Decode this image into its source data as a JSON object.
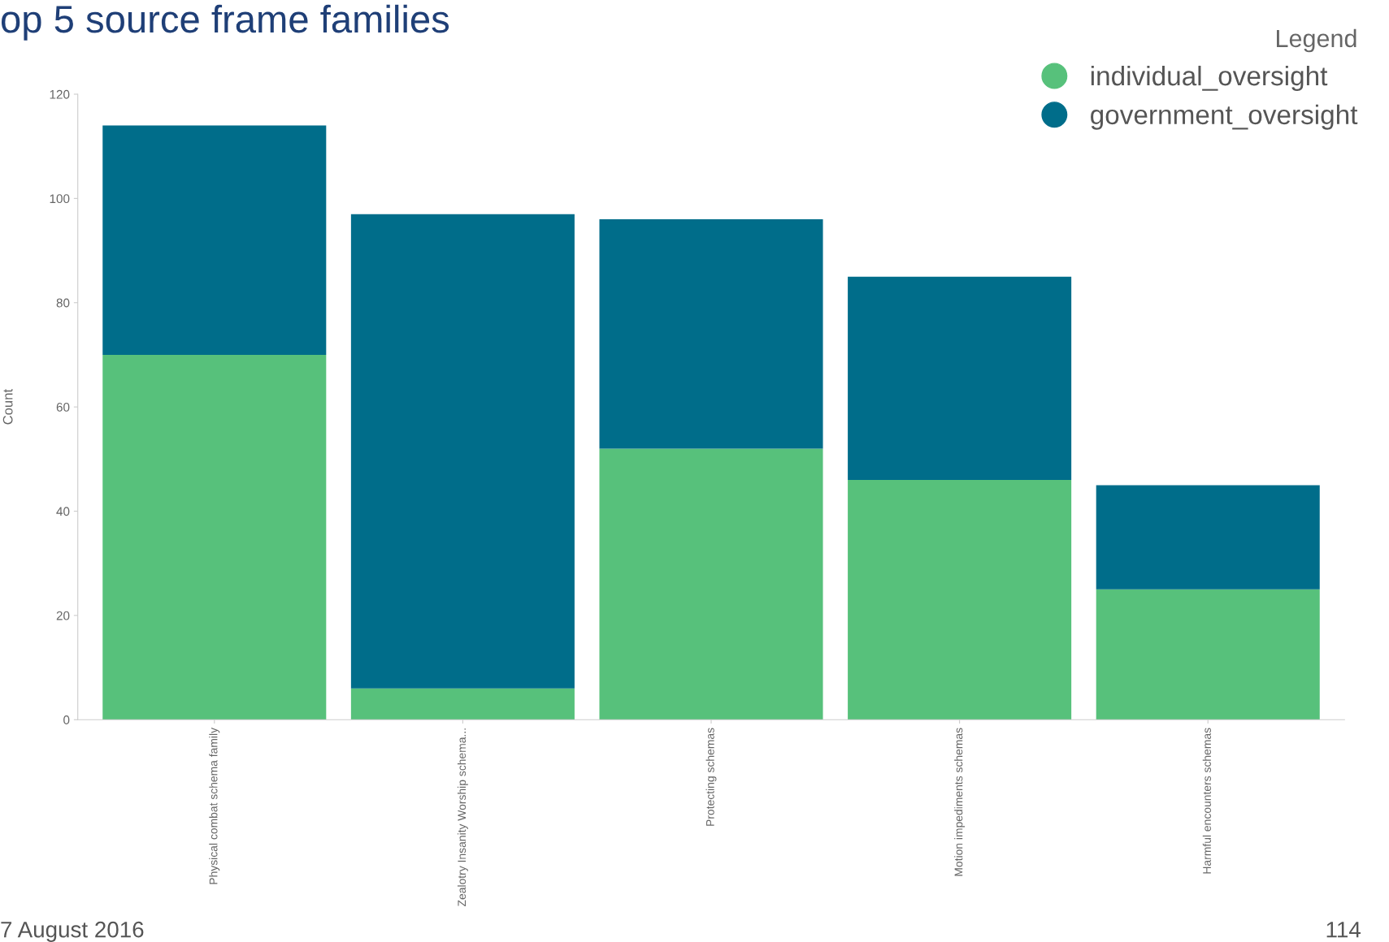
{
  "chart_data": {
    "type": "bar",
    "title": "op 5 source frame families",
    "ylabel": "Count",
    "legend_title": "Legend",
    "categories": [
      "Physical combat schema family",
      "Zealotry Insanity Worship schema...",
      "Protecting schemas",
      "Motion impediments schemas",
      "Harmful encounters schemas"
    ],
    "stacked": true,
    "series": [
      {
        "name": "individual_oversight",
        "color": "#57c17b",
        "values": [
          70,
          6,
          52,
          46,
          25
        ]
      },
      {
        "name": "government_oversight",
        "color": "#006d8a",
        "values": [
          44,
          91,
          44,
          39,
          20
        ]
      }
    ],
    "ylim": [
      0,
      120
    ],
    "yticks": [
      0,
      20,
      40,
      60,
      80,
      100,
      120
    ],
    "grid": false,
    "legend": "top right",
    "annotations": [
      "7 August 2016",
      "114"
    ]
  }
}
